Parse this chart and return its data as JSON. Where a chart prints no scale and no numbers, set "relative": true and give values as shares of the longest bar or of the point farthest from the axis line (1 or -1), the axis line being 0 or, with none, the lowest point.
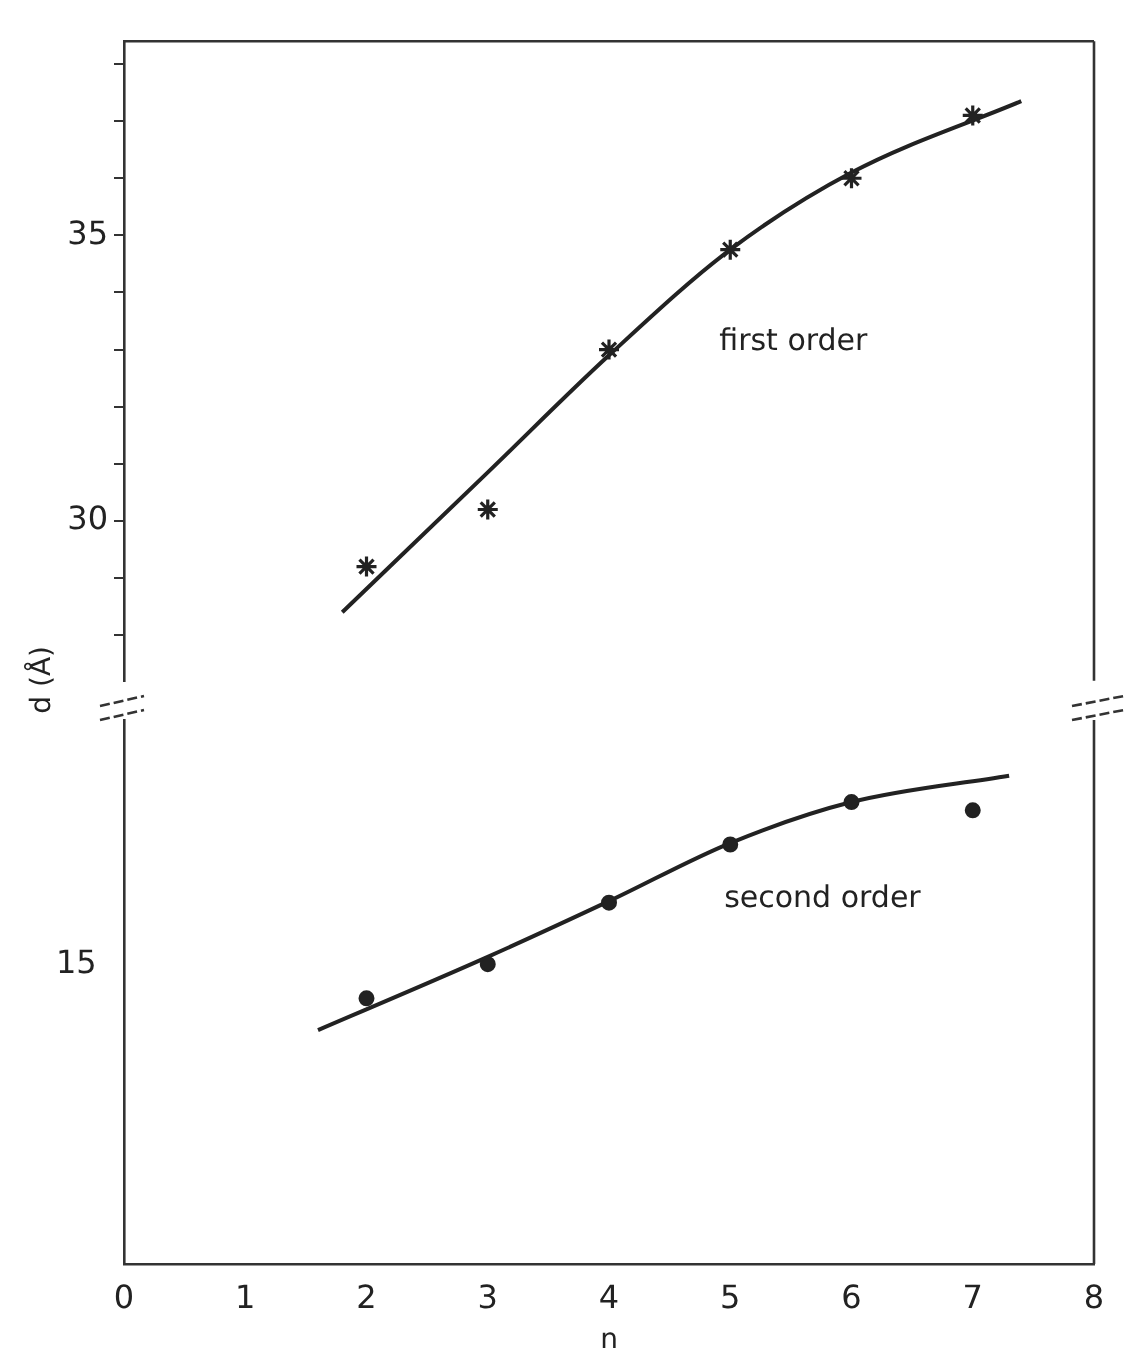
{
  "chart_data": [
    {
      "type": "scatter",
      "xlim": [
        0,
        8
      ],
      "xticks": [
        0,
        1,
        2,
        3,
        4,
        5,
        6,
        7,
        8
      ],
      "ylim": [
        27.2,
        38.4
      ],
      "yticks": [
        {
          "value": 28,
          "label": null
        },
        {
          "value": 29,
          "label": null
        },
        30,
        {
          "value": 31,
          "label": null
        },
        {
          "value": 32,
          "label": null
        },
        {
          "value": 33,
          "label": null
        },
        {
          "value": 34,
          "label": null
        },
        35,
        {
          "value": 36,
          "label": null
        },
        {
          "value": 37,
          "label": null
        },
        {
          "value": 38,
          "label": null
        }
      ],
      "tick_labels": "y",
      "grid": false,
      "legend": false,
      "series": [
        {
          "color": "#222222",
          "marker": "cross",
          "x": [
            2,
            3,
            4,
            5,
            6,
            7
          ],
          "values": [
            29.2,
            30.2,
            33.0,
            34.75,
            36.0,
            37.1
          ]
        },
        {
          "type": "line",
          "color": "#222222",
          "marker": "none",
          "line_style": "solid",
          "x": [
            1.8,
            3,
            4,
            5,
            6,
            7.4
          ],
          "values": [
            28.4,
            30.85,
            32.9,
            34.75,
            36.1,
            37.35
          ]
        }
      ],
      "annotations": [
        "first order"
      ]
    },
    {
      "type": "scatter",
      "relative": true,
      "xlim": [
        0,
        8
      ],
      "xticks": [
        0,
        1,
        2,
        3,
        4,
        5,
        6,
        7,
        8
      ],
      "xlabel": "n",
      "ylabel": "d (Å)",
      "grid": false,
      "legend": false,
      "series": [
        {
          "color": "#222222",
          "marker": "circle",
          "x": [
            2,
            3,
            4,
            5,
            6,
            7
          ],
          "values": [
            0.544,
            0.614,
            0.74,
            0.859,
            0.946,
            0.929
          ]
        },
        {
          "type": "line",
          "color": "#222222",
          "marker": "none",
          "line_style": "solid",
          "x": [
            1.6,
            3,
            4,
            5,
            6,
            7.3
          ],
          "values": [
            0.479,
            0.629,
            0.743,
            0.862,
            0.946,
            1
          ]
        }
      ],
      "annotations": [
        "second order",
        "15"
      ]
    }
  ]
}
